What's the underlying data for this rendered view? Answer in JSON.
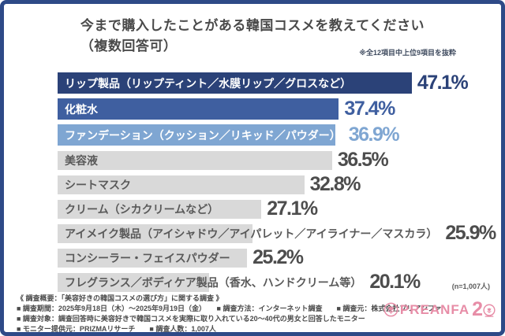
{
  "frame": {
    "border_color": "#2e4a87",
    "background": "#ffffff"
  },
  "header": {
    "title_line1": "今まで購入したことがある韓国コスメを教えてください",
    "title_line2": "（複数回答可）",
    "note": "※全12項目中上位9項目を抜粋"
  },
  "chart_data": {
    "type": "bar",
    "orientation": "horizontal",
    "title": "今まで購入したことがある韓国コスメを教えてください（複数回答可）",
    "xlabel": "",
    "ylabel": "",
    "xlim": [
      0,
      50
    ],
    "unit": "%",
    "grid": false,
    "legend": false,
    "sample_size_label": "(n=1,007人)",
    "categories": [
      "リップ製品（リップティント／水膜リップ／グロスなど）",
      "化粧水",
      "ファンデーション（クッション／リキッド／パウダー）",
      "美容液",
      "シートマスク",
      "クリーム（シカクリームなど）",
      "アイメイク製品（アイシャドウ／アイパレット／アイライナー／マスカラ）",
      "コンシーラー・フェイスパウダー",
      "フレグランス／ボディケア製品（香水、ハンドクリーム等）"
    ],
    "values": [
      47.1,
      37.4,
      36.9,
      36.5,
      32.8,
      27.1,
      25.9,
      25.2,
      20.1
    ],
    "value_labels": [
      "47.1%",
      "37.4%",
      "36.9%",
      "36.5%",
      "32.8%",
      "27.1%",
      "25.9%",
      "25.2%",
      "20.1%"
    ],
    "bar_colors": [
      "#2b4278",
      "#3f5fa0",
      "#7fa6d2",
      "#d9d9d9",
      "#d9d9d9",
      "#d9d9d9",
      "#d9d9d9",
      "#d9d9d9",
      "#d9d9d9"
    ],
    "label_colors": [
      "#ffffff",
      "#ffffff",
      "#ffffff",
      "#595959",
      "#595959",
      "#595959",
      "#595959",
      "#595959",
      "#595959"
    ],
    "pct_colors": [
      "#2b4278",
      "#3f5fa0",
      "#7fa6d2",
      "#4d4d4d",
      "#4d4d4d",
      "#4d4d4d",
      "#4d4d4d",
      "#4d4d4d",
      "#4d4d4d"
    ]
  },
  "footer": {
    "lines": [
      "《 調査概要：「美容好きの韓国コスメの選び方」に関する調査 》",
      "■ 調査期間：2025年9月18日（木）～2025年9月19日（金）　　■ 調査方法：インターネット調査　　■ 調査元：株式会社プリアンファ",
      "■ 調査対象：調査回答時に美容好きで韓国コスメを実際に取り入れている20～40代の男女と回答したモニター",
      "■ モニター提供元：PRIZMAリサーチ　　■ 調査人数：1,007人"
    ]
  },
  "logo": {
    "brand": "PREANFA",
    "anniversary": "20",
    "anniversary_digit": "2",
    "color": "#e78da7"
  }
}
